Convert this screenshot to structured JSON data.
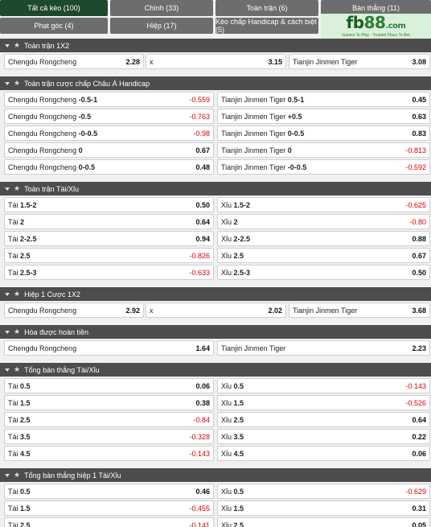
{
  "tabs": [
    {
      "label": "Tất cả kèo (100)",
      "active": true
    },
    {
      "label": "Chính (33)",
      "active": false
    },
    {
      "label": "Toàn trận (6)",
      "active": false
    },
    {
      "label": "Bàn thắng (11)",
      "active": false
    },
    {
      "label": "Phạt góc (4)",
      "active": false
    },
    {
      "label": "Hiệp (17)",
      "active": false
    },
    {
      "label": "Kèo chấp Handicap & cách biệt (5)",
      "active": false
    }
  ],
  "logo": {
    "fb": "fb",
    "eight": "88",
    "com": ".com",
    "tagline": "Games To Play · Trusted Place To Bet"
  },
  "sections": [
    {
      "title": "Toàn trận 1X2",
      "cols": 3,
      "rows": [
        [
          {
            "name": "Chengdu Rongcheng",
            "line": "",
            "odd": "2.28"
          },
          {
            "name": "x",
            "line": "",
            "odd": "3.15"
          },
          {
            "name": "Tianjin Jinmen Tiger",
            "line": "",
            "odd": "3.08"
          }
        ]
      ]
    },
    {
      "title": "Toàn trận cược chấp Châu Á Handicap",
      "cols": 2,
      "rows": [
        [
          {
            "name": "Chengdu Rongcheng",
            "line": "-0.5-1",
            "odd": "-0.559"
          },
          {
            "name": "Tianjin Jinmen Tiger",
            "line": "0.5-1",
            "odd": "0.45"
          }
        ],
        [
          {
            "name": "Chengdu Rongcheng",
            "line": "-0.5",
            "odd": "-0.763"
          },
          {
            "name": "Tianjin Jinmen Tiger",
            "line": "+0.5",
            "odd": "0.63"
          }
        ],
        [
          {
            "name": "Chengdu Rongcheng",
            "line": "-0-0.5",
            "odd": "-0.98"
          },
          {
            "name": "Tianjin Jinmen Tiger",
            "line": "0-0.5",
            "odd": "0.83"
          }
        ],
        [
          {
            "name": "Chengdu Rongcheng",
            "line": "0",
            "odd": "0.67"
          },
          {
            "name": "Tianjin Jinmen Tiger",
            "line": "0",
            "odd": "-0.813"
          }
        ],
        [
          {
            "name": "Chengdu Rongcheng",
            "line": "0-0.5",
            "odd": "0.48"
          },
          {
            "name": "Tianjin Jinmen Tiger",
            "line": "-0-0.5",
            "odd": "-0.592"
          }
        ]
      ]
    },
    {
      "title": "Toàn trận Tài/Xỉu",
      "cols": 2,
      "rows": [
        [
          {
            "name": "Tài",
            "line": "1.5-2",
            "odd": "0.50"
          },
          {
            "name": "Xỉu",
            "line": "1.5-2",
            "odd": "-0.625"
          }
        ],
        [
          {
            "name": "Tài",
            "line": "2",
            "odd": "0.64"
          },
          {
            "name": "Xỉu",
            "line": "2",
            "odd": "-0.80"
          }
        ],
        [
          {
            "name": "Tài",
            "line": "2-2.5",
            "odd": "0.94"
          },
          {
            "name": "Xỉu",
            "line": "2-2.5",
            "odd": "0.88"
          }
        ],
        [
          {
            "name": "Tài",
            "line": "2.5",
            "odd": "-0.826"
          },
          {
            "name": "Xỉu",
            "line": "2.5",
            "odd": "0.67"
          }
        ],
        [
          {
            "name": "Tài",
            "line": "2.5-3",
            "odd": "-0.633"
          },
          {
            "name": "Xỉu",
            "line": "2.5-3",
            "odd": "0.50"
          }
        ]
      ]
    },
    {
      "title": "Hiệp 1 Cược 1X2",
      "cols": 3,
      "rows": [
        [
          {
            "name": "Chengdu Rongcheng",
            "line": "",
            "odd": "2.92"
          },
          {
            "name": "x",
            "line": "",
            "odd": "2.02"
          },
          {
            "name": "Tianjin Jinmen Tiger",
            "line": "",
            "odd": "3.68"
          }
        ]
      ]
    },
    {
      "title": "Hòa được hoàn tiền",
      "cols": 2,
      "rows": [
        [
          {
            "name": "Chengdu Rongcheng",
            "line": "",
            "odd": "1.64"
          },
          {
            "name": "Tianjin Jinmen Tiger",
            "line": "",
            "odd": "2.23"
          }
        ]
      ]
    },
    {
      "title": "Tổng bàn thắng Tài/Xỉu",
      "cols": 2,
      "rows": [
        [
          {
            "name": "Tài",
            "line": "0.5",
            "odd": "0.06"
          },
          {
            "name": "Xỉu",
            "line": "0.5",
            "odd": "-0.143"
          }
        ],
        [
          {
            "name": "Tài",
            "line": "1.5",
            "odd": "0.38"
          },
          {
            "name": "Xỉu",
            "line": "1.5",
            "odd": "-0.526"
          }
        ],
        [
          {
            "name": "Tài",
            "line": "2.5",
            "odd": "-0.84"
          },
          {
            "name": "Xỉu",
            "line": "2.5",
            "odd": "0.64"
          }
        ],
        [
          {
            "name": "Tài",
            "line": "3.5",
            "odd": "-0.328"
          },
          {
            "name": "Xỉu",
            "line": "3.5",
            "odd": "0.22"
          }
        ],
        [
          {
            "name": "Tài",
            "line": "4.5",
            "odd": "-0.143"
          },
          {
            "name": "Xỉu",
            "line": "4.5",
            "odd": "0.06"
          }
        ]
      ]
    },
    {
      "title": "Tổng bàn thắng hiệp 1 Tài/Xỉu",
      "cols": 2,
      "rows": [
        [
          {
            "name": "Tài",
            "line": "0.5",
            "odd": "0.46"
          },
          {
            "name": "Xỉu",
            "line": "0.5",
            "odd": "-0.629"
          }
        ],
        [
          {
            "name": "Tài",
            "line": "1.5",
            "odd": "-0.455"
          },
          {
            "name": "Xỉu",
            "line": "1.5",
            "odd": "0.31"
          }
        ],
        [
          {
            "name": "Tài",
            "line": "2.5",
            "odd": "-0.141"
          },
          {
            "name": "Xỉu",
            "line": "2.5",
            "odd": "0.05"
          }
        ]
      ]
    }
  ]
}
